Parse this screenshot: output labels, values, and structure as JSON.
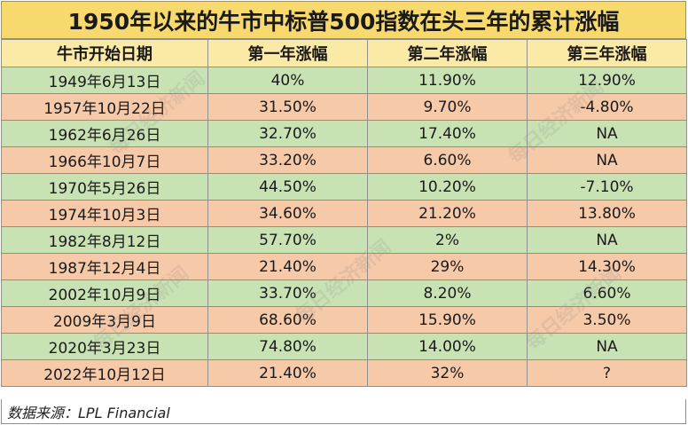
{
  "title": "1950年以来的牛市中标普500指数在头三年的累计涨幅",
  "headers": [
    "牛市开始日期",
    "第一年涨幅",
    "第二年涨幅",
    "第三年涨幅"
  ],
  "rows": [
    [
      "1949年6月13日",
      "40%",
      "11.90%",
      "12.90%"
    ],
    [
      "1957年10月22日",
      "31.50%",
      "9.70%",
      "-4.80%"
    ],
    [
      "1962年6月26日",
      "32.70%",
      "17.40%",
      "NA"
    ],
    [
      "1966年10月7日",
      "33.20%",
      "6.60%",
      "NA"
    ],
    [
      "1970年5月26日",
      "44.50%",
      "10.20%",
      "-7.10%"
    ],
    [
      "1974年10月3日",
      "34.60%",
      "21.20%",
      "13.80%"
    ],
    [
      "1982年8月12日",
      "57.70%",
      "2%",
      "NA"
    ],
    [
      "1987年12月4日",
      "21.40%",
      "29%",
      "14.30%"
    ],
    [
      "2002年10月9日",
      "33.70%",
      "8.20%",
      "6.60%"
    ],
    [
      "2009年3月9日",
      "68.60%",
      "15.90%",
      "3.50%"
    ],
    [
      "2020年3月23日",
      "74.80%",
      "14.00%",
      "NA"
    ],
    [
      "2022年10月12日",
      "21.40%",
      "32%",
      "?"
    ]
  ],
  "source": "数据来源：LPL Financial",
  "watermark": "每日经济新闻",
  "colors": {
    "title_bg": "#f7d96d",
    "header_bg": "#fbe9a6",
    "row_green": "#c9e2b3",
    "row_orange": "#f6c9a8",
    "border": "#8f8f8f"
  }
}
